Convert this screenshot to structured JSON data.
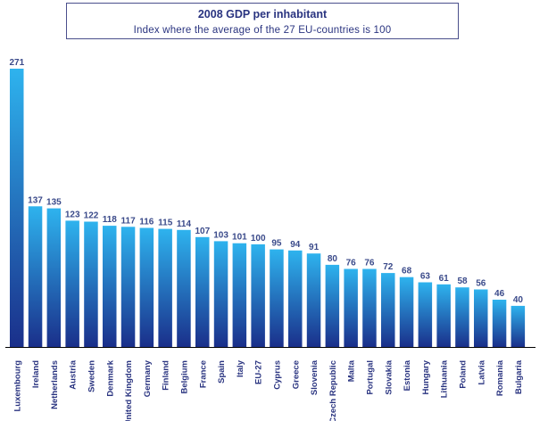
{
  "chart_data": {
    "type": "bar",
    "title": "2008 GDP per inhabitant",
    "subtitle": "Index where the average of the 27 EU-countries is 100",
    "categories": [
      "Luxembourg",
      "Ireland",
      "Netherlands",
      "Austria",
      "Sweden",
      "Denmark",
      "United Kingdom",
      "Germany",
      "Finland",
      "Belgium",
      "France",
      "Spain",
      "Italy",
      "EU-27",
      "Cyprus",
      "Greece",
      "Slovenia",
      "Czech Republic",
      "Malta",
      "Portugal",
      "Slovakia",
      "Estonia",
      "Hungary",
      "Lithuania",
      "Poland",
      "Latvia",
      "Romania",
      "Bulgaria"
    ],
    "values": [
      271,
      137,
      135,
      123,
      122,
      118,
      117,
      116,
      115,
      114,
      107,
      103,
      101,
      100,
      95,
      94,
      91,
      80,
      76,
      76,
      72,
      68,
      63,
      61,
      58,
      56,
      46,
      40
    ],
    "ylim": [
      0,
      271
    ],
    "grid": false,
    "colors": {
      "bar_top": "#2eb3ee",
      "bar_bottom": "#1a2f8a",
      "axis": "#000000",
      "text": "#2a3480"
    }
  }
}
